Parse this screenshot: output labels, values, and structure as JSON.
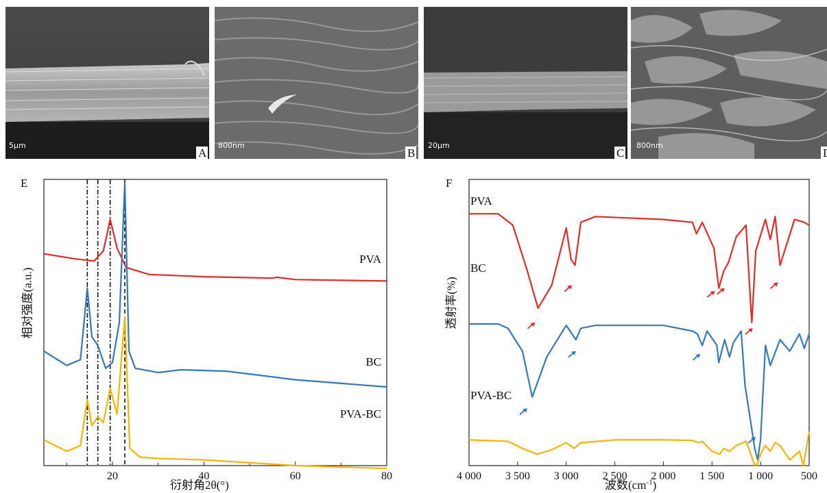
{
  "panels": {
    "A": {
      "letter": "A",
      "scale": "5μm"
    },
    "B": {
      "letter": "B",
      "scale": "800nm"
    },
    "C": {
      "letter": "C",
      "scale": "20μm"
    },
    "D": {
      "letter": "D",
      "scale": "800nm"
    }
  },
  "chart_data": [
    {
      "panel": "E",
      "type": "line",
      "xlabel": "衍射角2θ(°)",
      "ylabel": "相对强度(a.u.)",
      "xlim": [
        5,
        80
      ],
      "xticks": [
        20,
        40,
        60,
        80
      ],
      "reference_lines_x": [
        14.5,
        16.8,
        19.5,
        22.7
      ],
      "series": [
        {
          "name": "PVA",
          "color": "#e02b2b",
          "x": [
            5,
            12,
            16,
            18,
            19.5,
            21,
            23,
            28,
            40,
            55,
            56,
            60,
            80
          ],
          "y": [
            0.74,
            0.722,
            0.715,
            0.75,
            0.86,
            0.76,
            0.692,
            0.668,
            0.66,
            0.655,
            0.658,
            0.65,
            0.645
          ]
        },
        {
          "name": "BC",
          "color": "#3578b5",
          "x": [
            5,
            10,
            13,
            14.5,
            15.5,
            16.8,
            18.5,
            20,
            21.5,
            22.7,
            23.6,
            25,
            30,
            35,
            45,
            60,
            80
          ],
          "y": [
            0.4,
            0.35,
            0.37,
            0.62,
            0.45,
            0.42,
            0.34,
            0.36,
            0.5,
            0.99,
            0.4,
            0.34,
            0.325,
            0.335,
            0.33,
            0.3,
            0.275
          ]
        },
        {
          "name": "PVA-BC",
          "color": "#f4b400",
          "x": [
            5,
            10,
            13,
            14.5,
            15.5,
            16.8,
            18,
            19.5,
            21,
            22.7,
            23.8,
            26,
            30,
            40,
            60,
            80
          ],
          "y": [
            0.09,
            0.05,
            0.07,
            0.23,
            0.14,
            0.17,
            0.15,
            0.27,
            0.18,
            0.52,
            0.06,
            0.03,
            0.025,
            0.02,
            0.0,
            -0.01
          ]
        }
      ]
    },
    {
      "panel": "F",
      "type": "line",
      "xlabel": "波数(cm",
      "xlabel_sup": "-1",
      "xlabel_tail": ")",
      "ylabel": "透射率(%)",
      "xlim": [
        4000,
        500
      ],
      "xticks": [
        4000,
        3500,
        3000,
        2500,
        2000,
        1500,
        1000,
        500
      ],
      "xtick_labels": [
        "4 000",
        "3 500",
        "3 000",
        "2 500",
        "2 000",
        "1 500",
        "1 000",
        "500"
      ],
      "series": [
        {
          "name": "PVA",
          "color": "#e02b2b",
          "x": [
            4000,
            3700,
            3550,
            3400,
            3290,
            3150,
            3000,
            2950,
            2910,
            2850,
            2700,
            2000,
            1700,
            1660,
            1600,
            1480,
            1430,
            1380,
            1330,
            1250,
            1150,
            1100,
            1090,
            1050,
            950,
            900,
            850,
            800,
            650,
            550,
            500
          ],
          "y": [
            0.88,
            0.88,
            0.84,
            0.68,
            0.55,
            0.63,
            0.83,
            0.72,
            0.7,
            0.85,
            0.87,
            0.86,
            0.85,
            0.81,
            0.85,
            0.76,
            0.62,
            0.68,
            0.71,
            0.8,
            0.84,
            0.55,
            0.5,
            0.75,
            0.86,
            0.79,
            0.87,
            0.7,
            0.86,
            0.85,
            0.84
          ]
        },
        {
          "name": "BC",
          "color": "#3578b5",
          "x": [
            4000,
            3700,
            3600,
            3450,
            3350,
            3200,
            3000,
            2900,
            2850,
            2700,
            2000,
            1700,
            1650,
            1600,
            1550,
            1450,
            1430,
            1370,
            1320,
            1280,
            1200,
            1160,
            1110,
            1060,
            1030,
            1000,
            950,
            900,
            800,
            700,
            600,
            550,
            500
          ],
          "y": [
            0.495,
            0.495,
            0.48,
            0.4,
            0.24,
            0.38,
            0.49,
            0.44,
            0.48,
            0.49,
            0.49,
            0.47,
            0.46,
            0.42,
            0.47,
            0.42,
            0.36,
            0.44,
            0.38,
            0.43,
            0.47,
            0.28,
            0.17,
            0.06,
            0.02,
            0.09,
            0.42,
            0.35,
            0.44,
            0.4,
            0.46,
            0.41,
            0.46
          ]
        },
        {
          "name": "PVA-BC",
          "color": "#f4b400",
          "x": [
            4000,
            3600,
            3450,
            3300,
            3150,
            3000,
            2920,
            2850,
            2500,
            2000,
            1700,
            1640,
            1600,
            1500,
            1420,
            1380,
            1320,
            1250,
            1150,
            1100,
            1060,
            1030,
            1000,
            950,
            900,
            850,
            800,
            700,
            600,
            560,
            500
          ],
          "y": [
            0.09,
            0.085,
            0.06,
            0.04,
            0.055,
            0.08,
            0.06,
            0.08,
            0.09,
            0.09,
            0.088,
            0.08,
            0.085,
            0.05,
            0.04,
            0.06,
            0.05,
            0.07,
            0.085,
            0.04,
            0.0,
            0.01,
            0.04,
            0.07,
            0.05,
            0.08,
            0.07,
            0.02,
            0.05,
            0.0,
            0.12
          ]
        }
      ],
      "arrows": [
        {
          "color": "#e02b2b",
          "x": 3320,
          "y": 0.5
        },
        {
          "color": "#e02b2b",
          "x": 2940,
          "y": 0.63
        },
        {
          "color": "#e02b2b",
          "x": 1470,
          "y": 0.61
        },
        {
          "color": "#e02b2b",
          "x": 1370,
          "y": 0.62
        },
        {
          "color": "#e02b2b",
          "x": 1080,
          "y": 0.48
        },
        {
          "color": "#e02b2b",
          "x": 820,
          "y": 0.64
        },
        {
          "color": "#3578b5",
          "x": 3400,
          "y": 0.2
        },
        {
          "color": "#3578b5",
          "x": 2900,
          "y": 0.4
        },
        {
          "color": "#3578b5",
          "x": 1620,
          "y": 0.39
        },
        {
          "color": "#3578b5",
          "x": 1050,
          "y": 0.1
        }
      ]
    }
  ]
}
